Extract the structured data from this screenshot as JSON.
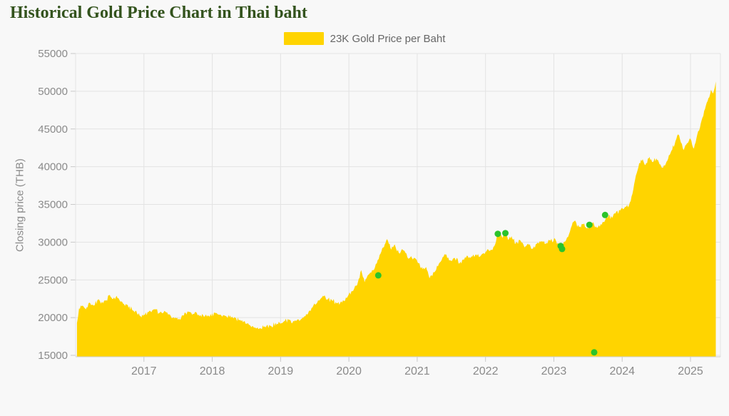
{
  "header": {
    "title": "Historical Gold Price Chart in Thai baht",
    "title_color": "#33531d"
  },
  "legend": {
    "label": "23K Gold Price per Baht",
    "swatch_color": "#ffd400"
  },
  "axes": {
    "y_title": "Closing price (THB)"
  },
  "chart_data": {
    "type": "area",
    "title": "Historical Gold Price Chart in Thai baht",
    "series": [
      {
        "name": "23K Gold Price per Baht",
        "color": "#ffd400"
      }
    ],
    "xlabel": "",
    "ylabel": "Closing price (THB)",
    "xlim": [
      2016.0,
      2025.45
    ],
    "ylim": [
      15000,
      55000
    ],
    "x_ticks": [
      2017,
      2018,
      2019,
      2020,
      2021,
      2022,
      2023,
      2024,
      2025
    ],
    "y_ticks": [
      15000,
      20000,
      25000,
      30000,
      35000,
      40000,
      45000,
      50000,
      55000
    ],
    "grid": true,
    "legend_position": "top-center",
    "area_color": "#ffd400",
    "marker_color": "#2bc32b",
    "points": [
      [
        2016.02,
        19300
      ],
      [
        2016.05,
        21200
      ],
      [
        2016.1,
        21600
      ],
      [
        2016.15,
        21100
      ],
      [
        2016.2,
        22000
      ],
      [
        2016.27,
        21600
      ],
      [
        2016.33,
        22400
      ],
      [
        2016.4,
        21900
      ],
      [
        2016.45,
        22300
      ],
      [
        2016.5,
        23000
      ],
      [
        2016.55,
        22500
      ],
      [
        2016.6,
        22900
      ],
      [
        2016.68,
        22100
      ],
      [
        2016.75,
        21700
      ],
      [
        2016.85,
        20900
      ],
      [
        2016.95,
        20200
      ],
      [
        2017.0,
        20400
      ],
      [
        2017.08,
        20900
      ],
      [
        2017.15,
        21100
      ],
      [
        2017.22,
        20600
      ],
      [
        2017.3,
        20900
      ],
      [
        2017.38,
        20400
      ],
      [
        2017.45,
        19900
      ],
      [
        2017.5,
        19700
      ],
      [
        2017.57,
        20300
      ],
      [
        2017.65,
        20800
      ],
      [
        2017.72,
        20500
      ],
      [
        2017.8,
        20400
      ],
      [
        2017.88,
        20100
      ],
      [
        2017.95,
        20200
      ],
      [
        2018.05,
        20600
      ],
      [
        2018.12,
        20400
      ],
      [
        2018.2,
        20200
      ],
      [
        2018.3,
        20000
      ],
      [
        2018.4,
        19700
      ],
      [
        2018.5,
        19200
      ],
      [
        2018.6,
        18800
      ],
      [
        2018.7,
        18600
      ],
      [
        2018.78,
        18700
      ],
      [
        2018.85,
        18900
      ],
      [
        2018.95,
        19200
      ],
      [
        2019.05,
        19500
      ],
      [
        2019.12,
        19700
      ],
      [
        2019.2,
        19500
      ],
      [
        2019.3,
        19800
      ],
      [
        2019.4,
        20500
      ],
      [
        2019.48,
        21600
      ],
      [
        2019.55,
        22300
      ],
      [
        2019.62,
        22900
      ],
      [
        2019.68,
        22400
      ],
      [
        2019.75,
        22300
      ],
      [
        2019.82,
        21900
      ],
      [
        2019.9,
        22000
      ],
      [
        2019.97,
        22600
      ],
      [
        2020.05,
        23500
      ],
      [
        2020.12,
        24300
      ],
      [
        2020.18,
        26300
      ],
      [
        2020.23,
        24700
      ],
      [
        2020.3,
        25800
      ],
      [
        2020.38,
        26600
      ],
      [
        2020.45,
        28300
      ],
      [
        2020.5,
        29300
      ],
      [
        2020.56,
        30400
      ],
      [
        2020.62,
        29000
      ],
      [
        2020.67,
        29700
      ],
      [
        2020.73,
        28600
      ],
      [
        2020.8,
        28900
      ],
      [
        2020.87,
        27800
      ],
      [
        2020.95,
        27900
      ],
      [
        2021.02,
        27200
      ],
      [
        2021.08,
        26400
      ],
      [
        2021.13,
        26700
      ],
      [
        2021.18,
        25200
      ],
      [
        2021.25,
        26000
      ],
      [
        2021.33,
        27300
      ],
      [
        2021.4,
        28400
      ],
      [
        2021.48,
        27600
      ],
      [
        2021.55,
        27900
      ],
      [
        2021.62,
        27200
      ],
      [
        2021.7,
        28000
      ],
      [
        2021.78,
        27900
      ],
      [
        2021.85,
        28300
      ],
      [
        2021.93,
        28200
      ],
      [
        2022.0,
        28700
      ],
      [
        2022.08,
        29000
      ],
      [
        2022.14,
        29700
      ],
      [
        2022.19,
        31500
      ],
      [
        2022.24,
        30700
      ],
      [
        2022.28,
        31200
      ],
      [
        2022.33,
        30300
      ],
      [
        2022.38,
        30800
      ],
      [
        2022.44,
        29800
      ],
      [
        2022.5,
        30300
      ],
      [
        2022.57,
        29300
      ],
      [
        2022.62,
        29800
      ],
      [
        2022.68,
        29100
      ],
      [
        2022.75,
        29800
      ],
      [
        2022.82,
        30100
      ],
      [
        2022.88,
        29800
      ],
      [
        2022.95,
        30200
      ],
      [
        2023.02,
        30400
      ],
      [
        2023.07,
        29800
      ],
      [
        2023.12,
        29400
      ],
      [
        2023.18,
        30300
      ],
      [
        2023.25,
        31900
      ],
      [
        2023.3,
        32800
      ],
      [
        2023.37,
        32000
      ],
      [
        2023.42,
        32400
      ],
      [
        2023.48,
        31800
      ],
      [
        2023.53,
        32200
      ],
      [
        2023.58,
        32600
      ],
      [
        2023.63,
        31900
      ],
      [
        2023.7,
        32300
      ],
      [
        2023.75,
        32900
      ],
      [
        2023.8,
        33500
      ],
      [
        2023.85,
        33200
      ],
      [
        2023.9,
        33800
      ],
      [
        2023.97,
        34200
      ],
      [
        2024.03,
        34500
      ],
      [
        2024.1,
        34900
      ],
      [
        2024.15,
        36400
      ],
      [
        2024.2,
        38800
      ],
      [
        2024.25,
        40500
      ],
      [
        2024.3,
        41000
      ],
      [
        2024.34,
        40200
      ],
      [
        2024.4,
        41300
      ],
      [
        2024.45,
        40600
      ],
      [
        2024.5,
        41100
      ],
      [
        2024.56,
        40300
      ],
      [
        2024.6,
        39900
      ],
      [
        2024.66,
        40800
      ],
      [
        2024.72,
        42100
      ],
      [
        2024.78,
        43400
      ],
      [
        2024.82,
        44300
      ],
      [
        2024.86,
        43200
      ],
      [
        2024.9,
        42200
      ],
      [
        2024.95,
        43100
      ],
      [
        2025.0,
        43700
      ],
      [
        2025.05,
        42400
      ],
      [
        2025.1,
        44300
      ],
      [
        2025.15,
        45700
      ],
      [
        2025.2,
        47400
      ],
      [
        2025.25,
        48700
      ],
      [
        2025.3,
        50200
      ],
      [
        2025.33,
        49700
      ],
      [
        2025.37,
        51300
      ]
    ],
    "markers": [
      [
        2020.43,
        25600
      ],
      [
        2022.18,
        31100
      ],
      [
        2022.29,
        31200
      ],
      [
        2023.1,
        29500
      ],
      [
        2023.12,
        29100
      ],
      [
        2023.52,
        32300
      ],
      [
        2023.59,
        15400
      ],
      [
        2023.75,
        33600
      ]
    ]
  }
}
